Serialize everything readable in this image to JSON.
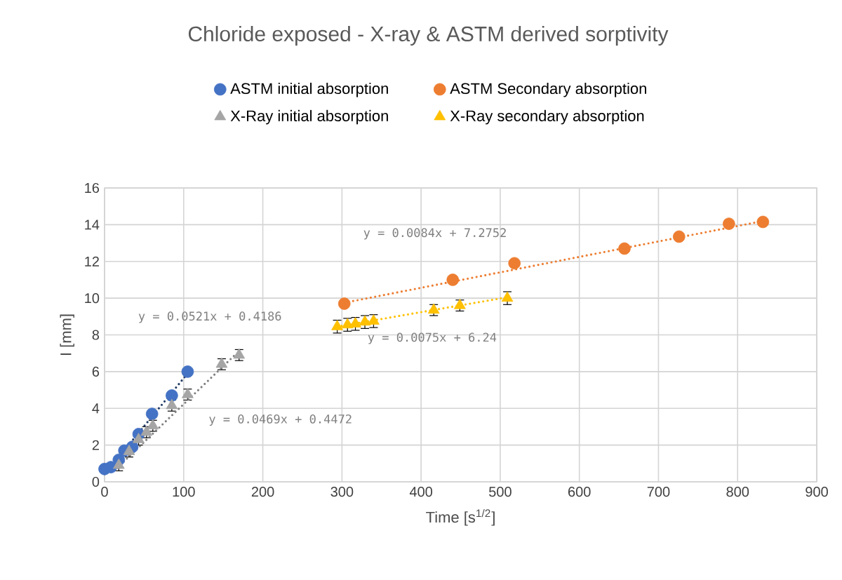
{
  "chart_data": {
    "type": "scatter",
    "title": "Chloride exposed - X-ray & ASTM derived sorptivity",
    "xlabel": "Time [s$^{1/2}$]",
    "ylabel": "I [mm]",
    "xlim": [
      0,
      900
    ],
    "ylim": [
      0,
      16
    ],
    "xticks": [
      0,
      100,
      200,
      300,
      400,
      500,
      600,
      700,
      800,
      900
    ],
    "yticks": [
      0,
      2,
      4,
      6,
      8,
      10,
      12,
      14,
      16
    ],
    "grid": true,
    "legend": "top",
    "series": [
      {
        "name": "ASTM initial absorption",
        "color": "#4472c4",
        "marker": "circle",
        "x": [
          0,
          8,
          18,
          25,
          35,
          43,
          60,
          85,
          105
        ],
        "values": [
          0.7,
          0.8,
          1.2,
          1.7,
          1.9,
          2.6,
          3.7,
          4.7,
          6.0
        ]
      },
      {
        "name": "ASTM Secondary absorption",
        "color": "#ed7d31",
        "marker": "circle",
        "x": [
          303,
          440,
          518,
          657,
          726,
          789,
          832
        ],
        "values": [
          9.7,
          11.0,
          11.9,
          12.7,
          13.35,
          14.05,
          14.15
        ]
      },
      {
        "name": "X-Ray initial absorption",
        "color": "#a5a5a5",
        "marker": "triangle",
        "x": [
          18,
          31,
          43,
          53,
          61,
          85,
          105,
          148,
          170
        ],
        "values": [
          0.9,
          1.65,
          2.3,
          2.7,
          3.05,
          4.15,
          4.75,
          6.4,
          6.9
        ],
        "errors": [
          0.3,
          0.3,
          0.3,
          0.3,
          0.3,
          0.3,
          0.3,
          0.3,
          0.3
        ]
      },
      {
        "name": "X-Ray secondary absorption",
        "color": "#ffc000",
        "marker": "triangle",
        "x": [
          294,
          307,
          317,
          329,
          340,
          416,
          449,
          509
        ],
        "values": [
          8.45,
          8.55,
          8.6,
          8.7,
          8.75,
          9.35,
          9.6,
          10.0
        ],
        "errors": [
          0.35,
          0.35,
          0.35,
          0.35,
          0.35,
          0.3,
          0.3,
          0.35
        ]
      },
      {
        "type": "line",
        "color": "#203864",
        "line_style": "dotted",
        "x": [
          0,
          105
        ],
        "values": [
          0.42,
          5.9
        ]
      },
      {
        "type": "line",
        "color": "#ed7d31",
        "line_style": "dotted",
        "x": [
          303,
          832
        ],
        "values": [
          9.75,
          14.2
        ]
      },
      {
        "type": "line",
        "color": "#7f7f7f",
        "line_style": "dotted",
        "x": [
          16,
          167
        ],
        "values": [
          0.76,
          7.0
        ]
      },
      {
        "type": "line",
        "color": "#ffc000",
        "line_style": "dotted",
        "x": [
          294,
          509
        ],
        "values": [
          8.45,
          10.05
        ]
      }
    ],
    "annotations": [
      "y = 0.0521x + 0.4186",
      "y = 0.0469x + 0.4472",
      "y = 0.0084x + 7.2752",
      "y = 0.0075x + 6.24"
    ]
  }
}
